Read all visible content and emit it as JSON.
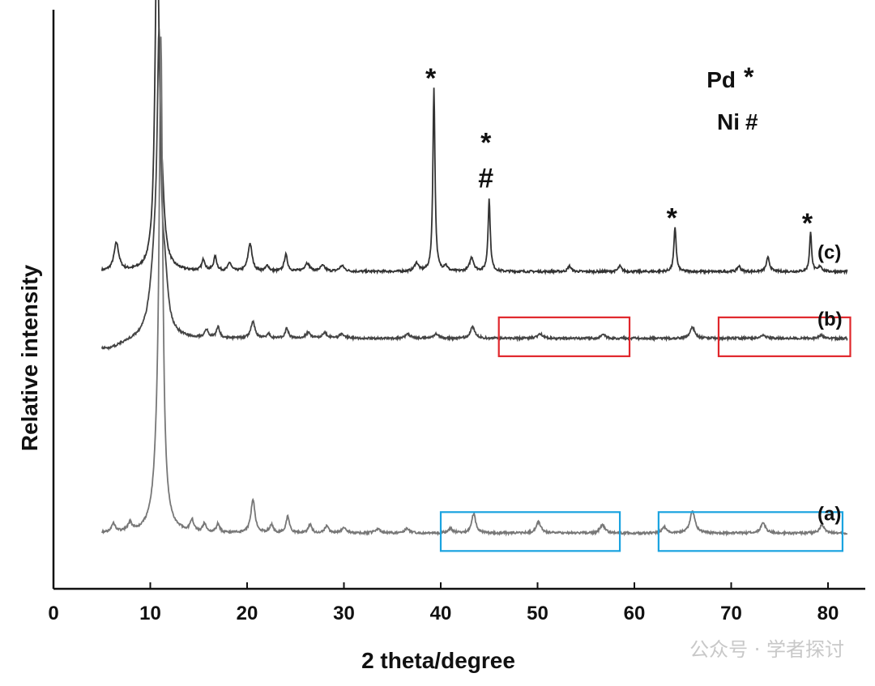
{
  "chart_data": {
    "type": "line",
    "xlabel": "2 theta/degree",
    "ylabel": "Relative intensity",
    "xlim": [
      0,
      85
    ],
    "xticks": [
      0,
      10,
      20,
      30,
      40,
      50,
      60,
      70,
      80
    ],
    "grid": false,
    "legend": [
      {
        "label": "Pd",
        "symbol": "*"
      },
      {
        "label": "Ni",
        "symbol": "#"
      }
    ],
    "series": [
      {
        "name": "(c)",
        "color": "#333333",
        "baseline": 0.57,
        "start": 5,
        "end": 82,
        "peaks": [
          [
            6.5,
            0.05,
            0.3
          ],
          [
            10.7,
            0.62,
            0.25
          ],
          [
            11.2,
            0.09,
            0.3
          ],
          [
            15.5,
            0.02,
            0.2
          ],
          [
            16.7,
            0.025,
            0.2
          ],
          [
            18.2,
            0.015,
            0.2
          ],
          [
            20.3,
            0.05,
            0.25
          ],
          [
            22.1,
            0.01,
            0.2
          ],
          [
            24.0,
            0.03,
            0.2
          ],
          [
            26.2,
            0.015,
            0.3
          ],
          [
            27.8,
            0.01,
            0.3
          ],
          [
            29.8,
            0.01,
            0.3
          ],
          [
            37.5,
            0.015,
            0.25
          ],
          [
            39.3,
            0.33,
            0.13
          ],
          [
            40.5,
            0.01,
            0.2
          ],
          [
            43.2,
            0.025,
            0.25
          ],
          [
            45.0,
            0.13,
            0.14
          ],
          [
            53.3,
            0.01,
            0.2
          ],
          [
            58.5,
            0.01,
            0.2
          ],
          [
            64.2,
            0.08,
            0.14
          ],
          [
            70.8,
            0.01,
            0.2
          ],
          [
            73.8,
            0.025,
            0.2
          ],
          [
            78.2,
            0.07,
            0.13
          ],
          [
            79.2,
            0.01,
            0.2
          ]
        ]
      },
      {
        "name": "(b)",
        "color": "#444444",
        "baseline": 0.45,
        "start": 5,
        "end": 82,
        "peaks": [
          [
            5.5,
            -0.02,
            2.0
          ],
          [
            10.5,
            0.13,
            0.6
          ],
          [
            10.9,
            0.45,
            0.22
          ],
          [
            11.5,
            0.08,
            0.35
          ],
          [
            15.8,
            0.015,
            0.2
          ],
          [
            17.0,
            0.02,
            0.2
          ],
          [
            20.6,
            0.03,
            0.25
          ],
          [
            22.2,
            0.008,
            0.2
          ],
          [
            24.1,
            0.018,
            0.2
          ],
          [
            26.3,
            0.01,
            0.3
          ],
          [
            28.0,
            0.01,
            0.3
          ],
          [
            29.8,
            0.008,
            0.3
          ],
          [
            36.6,
            0.008,
            0.3
          ],
          [
            39.5,
            0.008,
            0.3
          ],
          [
            43.3,
            0.02,
            0.3
          ],
          [
            50.3,
            0.008,
            0.3
          ],
          [
            56.8,
            0.006,
            0.3
          ],
          [
            66.0,
            0.02,
            0.3
          ],
          [
            73.3,
            0.006,
            0.3
          ],
          [
            79.3,
            0.006,
            0.3
          ]
        ]
      },
      {
        "name": "(a)",
        "color": "#777777",
        "baseline": 0.1,
        "start": 5,
        "end": 82,
        "peaks": [
          [
            6.2,
            0.015,
            0.25
          ],
          [
            7.9,
            0.015,
            0.25
          ],
          [
            10.8,
            0.1,
            0.5
          ],
          [
            11.1,
            0.82,
            0.22
          ],
          [
            14.3,
            0.02,
            0.2
          ],
          [
            15.6,
            0.015,
            0.2
          ],
          [
            17.0,
            0.015,
            0.2
          ],
          [
            20.6,
            0.06,
            0.25
          ],
          [
            22.5,
            0.015,
            0.2
          ],
          [
            24.2,
            0.03,
            0.2
          ],
          [
            26.5,
            0.015,
            0.2
          ],
          [
            28.2,
            0.012,
            0.25
          ],
          [
            30.0,
            0.01,
            0.25
          ],
          [
            33.5,
            0.008,
            0.3
          ],
          [
            36.5,
            0.008,
            0.3
          ],
          [
            41.0,
            0.008,
            0.3
          ],
          [
            43.4,
            0.035,
            0.25
          ],
          [
            50.1,
            0.02,
            0.3
          ],
          [
            56.7,
            0.015,
            0.3
          ],
          [
            63.1,
            0.01,
            0.3
          ],
          [
            66.0,
            0.04,
            0.3
          ],
          [
            73.3,
            0.018,
            0.3
          ],
          [
            79.4,
            0.015,
            0.3
          ]
        ]
      }
    ],
    "peak_markers": [
      {
        "x": 39.3,
        "series": "(c)",
        "symbols": [
          "*"
        ]
      },
      {
        "x": 45.0,
        "series": "(c)",
        "symbols": [
          "*",
          "#"
        ]
      },
      {
        "x": 64.2,
        "series": "(c)",
        "symbols": [
          "*"
        ]
      },
      {
        "x": 78.2,
        "series": "(c)",
        "symbols": [
          "*"
        ]
      }
    ],
    "highlight_boxes": [
      {
        "series": "(b)",
        "x_range": [
          46,
          59.5
        ],
        "color": "#e0262b"
      },
      {
        "series": "(b)",
        "x_range": [
          68.7,
          82.3
        ],
        "color": "#e0262b"
      },
      {
        "series": "(a)",
        "x_range": [
          40,
          58.5
        ],
        "color": "#1aa3e0"
      },
      {
        "series": "(a)",
        "x_range": [
          62.5,
          81.5
        ],
        "color": "#1aa3e0"
      }
    ]
  },
  "watermark": "公众号 · 学者探讨"
}
